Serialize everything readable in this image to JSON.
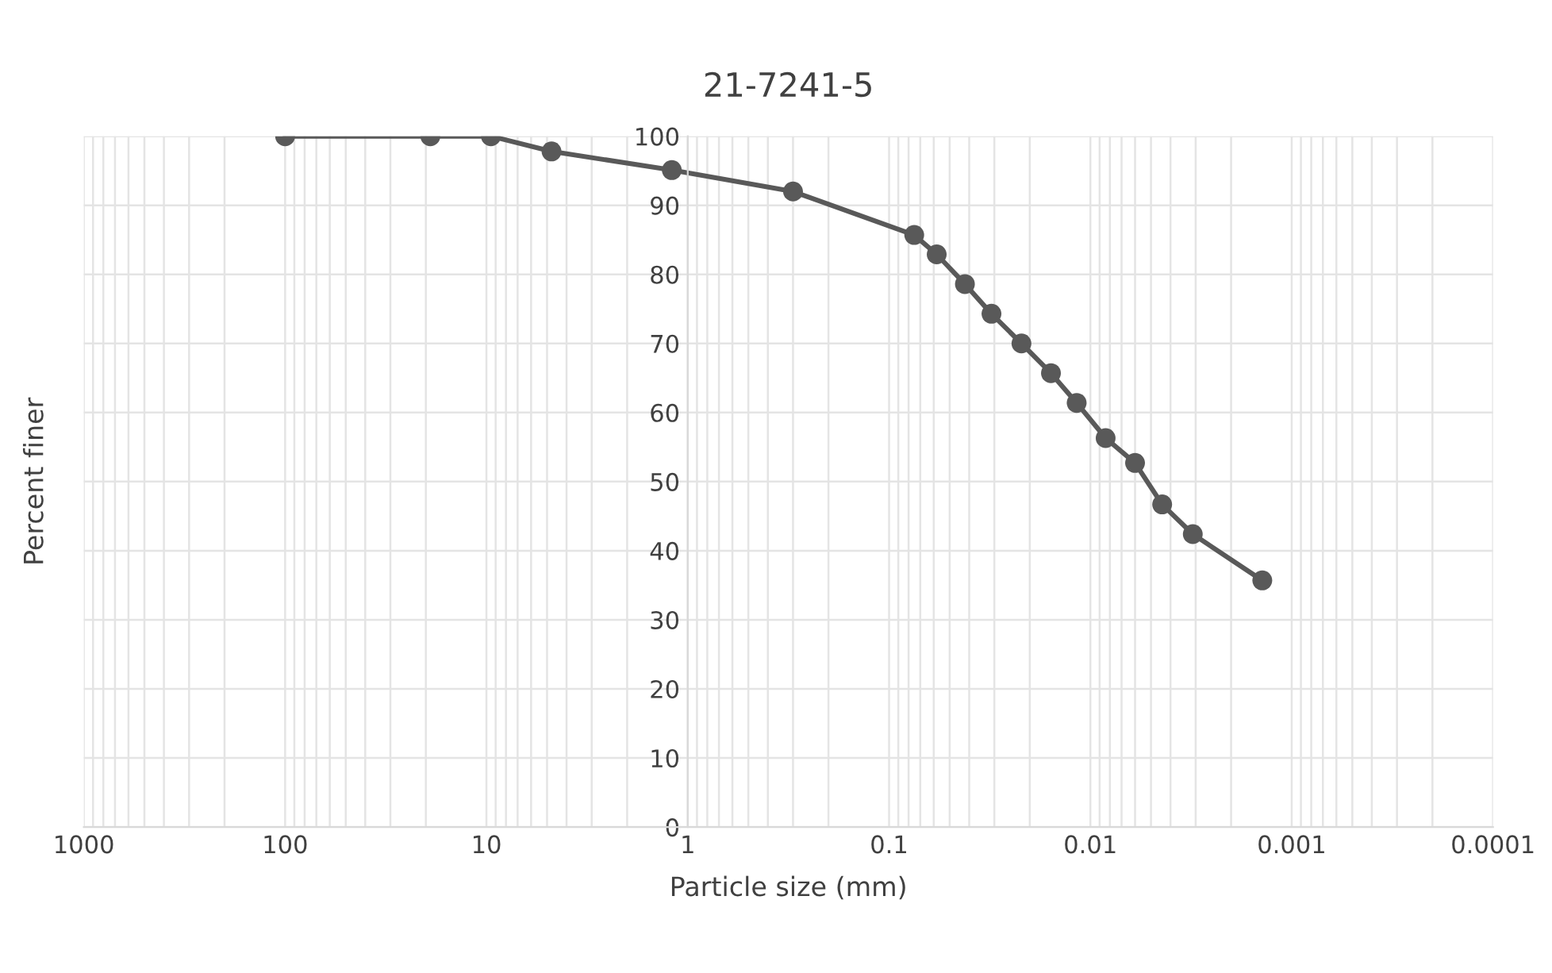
{
  "chart_data": {
    "type": "line",
    "title": "21-7241-5",
    "xlabel": "Particle size (mm)",
    "ylabel": "Percent finer",
    "log": "x",
    "xlim": [
      1000,
      0.0001
    ],
    "xticks": [
      1000,
      100,
      10,
      1,
      0.1,
      0.01,
      0.001,
      0.0001
    ],
    "ylim": [
      0,
      100
    ],
    "yticks": [
      0,
      10,
      20,
      30,
      40,
      50,
      60,
      70,
      80,
      90,
      100
    ],
    "grid": true,
    "marker": "circle",
    "line_style": "solid",
    "series": [
      {
        "color": "#595959",
        "x": [
          100,
          19,
          9.5,
          4.75,
          1.2,
          0.3,
          0.075,
          0.058,
          0.042,
          0.031,
          0.022,
          0.0157,
          0.0117,
          0.0084,
          0.006,
          0.0044,
          0.0031,
          0.0014
        ],
        "values": [
          100,
          100,
          100,
          97.8,
          95.1,
          92.0,
          85.7,
          82.9,
          78.6,
          74.3,
          70.0,
          65.7,
          61.4,
          56.3,
          52.7,
          46.7,
          42.4,
          35.7
        ]
      }
    ]
  }
}
